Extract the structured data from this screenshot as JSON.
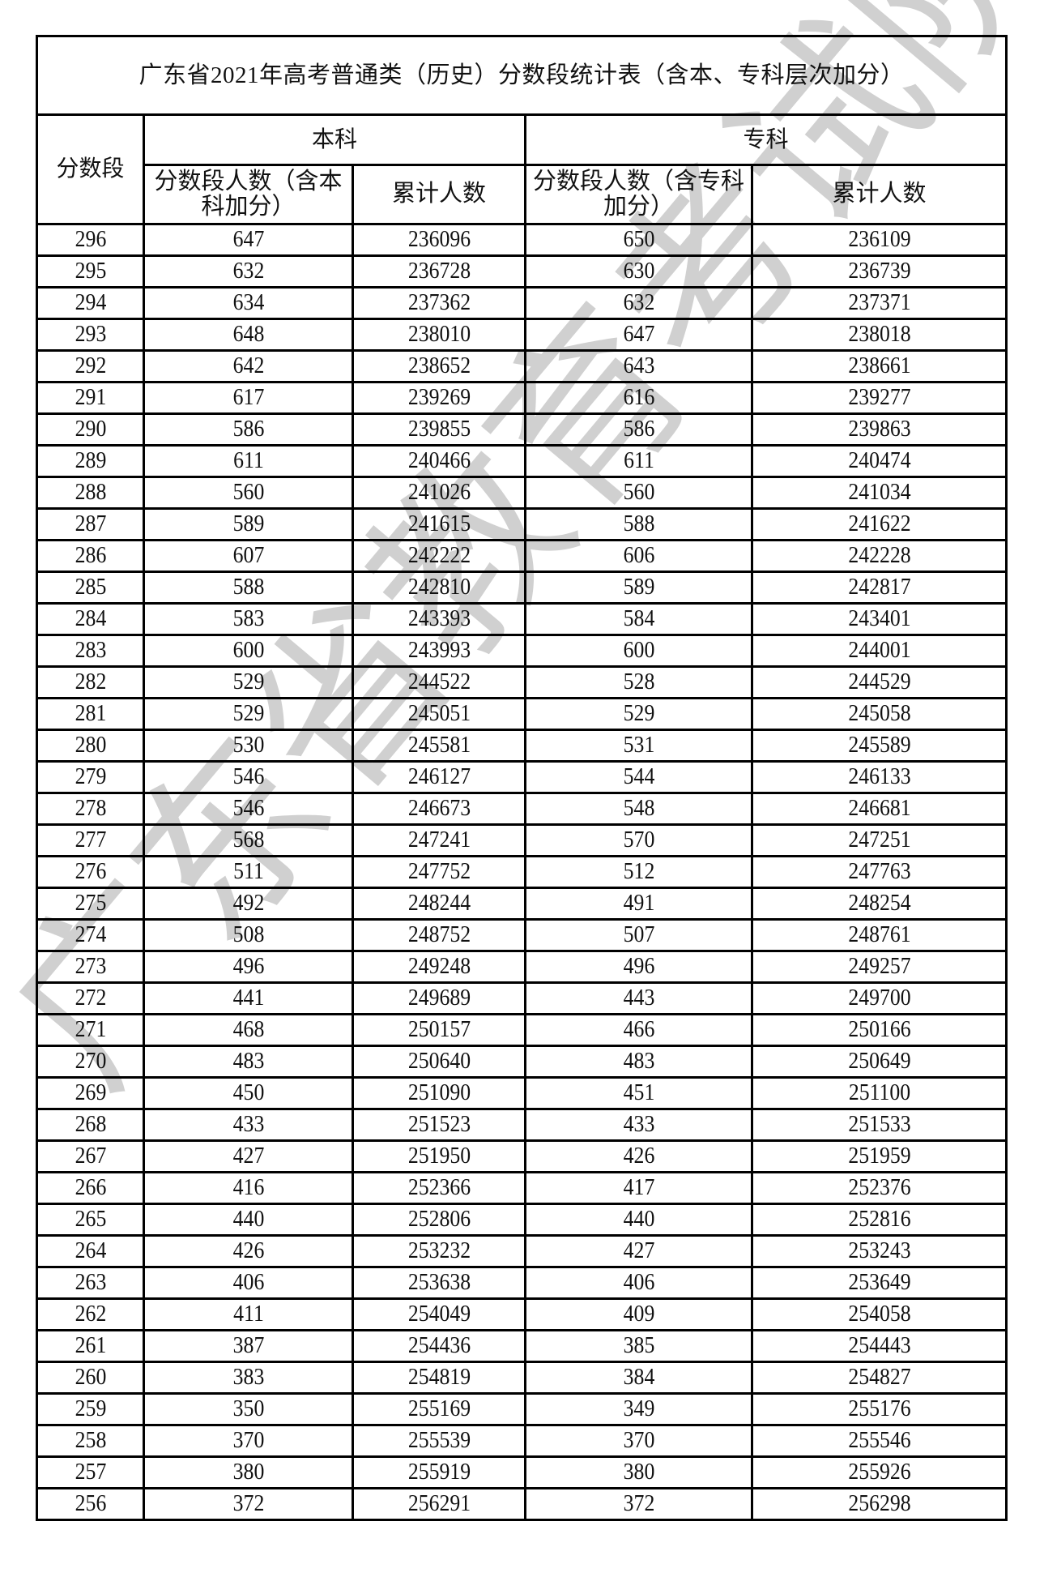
{
  "title": "广东省2021年高考普通类（历史）分数段统计表（含本、专科层次加分）",
  "headers": {
    "score": "分数段",
    "benke": "本科",
    "zhuanke": "专科",
    "benke_count": "分数段人数（含本科加分）",
    "benke_cum": "累计人数",
    "zhuanke_count": "分数段人数（含专科加分）",
    "zhuanke_cum": "累计人数"
  },
  "rows": [
    [
      "296",
      "647",
      "236096",
      "650",
      "236109"
    ],
    [
      "295",
      "632",
      "236728",
      "630",
      "236739"
    ],
    [
      "294",
      "634",
      "237362",
      "632",
      "237371"
    ],
    [
      "293",
      "648",
      "238010",
      "647",
      "238018"
    ],
    [
      "292",
      "642",
      "238652",
      "643",
      "238661"
    ],
    [
      "291",
      "617",
      "239269",
      "616",
      "239277"
    ],
    [
      "290",
      "586",
      "239855",
      "586",
      "239863"
    ],
    [
      "289",
      "611",
      "240466",
      "611",
      "240474"
    ],
    [
      "288",
      "560",
      "241026",
      "560",
      "241034"
    ],
    [
      "287",
      "589",
      "241615",
      "588",
      "241622"
    ],
    [
      "286",
      "607",
      "242222",
      "606",
      "242228"
    ],
    [
      "285",
      "588",
      "242810",
      "589",
      "242817"
    ],
    [
      "284",
      "583",
      "243393",
      "584",
      "243401"
    ],
    [
      "283",
      "600",
      "243993",
      "600",
      "244001"
    ],
    [
      "282",
      "529",
      "244522",
      "528",
      "244529"
    ],
    [
      "281",
      "529",
      "245051",
      "529",
      "245058"
    ],
    [
      "280",
      "530",
      "245581",
      "531",
      "245589"
    ],
    [
      "279",
      "546",
      "246127",
      "544",
      "246133"
    ],
    [
      "278",
      "546",
      "246673",
      "548",
      "246681"
    ],
    [
      "277",
      "568",
      "247241",
      "570",
      "247251"
    ],
    [
      "276",
      "511",
      "247752",
      "512",
      "247763"
    ],
    [
      "275",
      "492",
      "248244",
      "491",
      "248254"
    ],
    [
      "274",
      "508",
      "248752",
      "507",
      "248761"
    ],
    [
      "273",
      "496",
      "249248",
      "496",
      "249257"
    ],
    [
      "272",
      "441",
      "249689",
      "443",
      "249700"
    ],
    [
      "271",
      "468",
      "250157",
      "466",
      "250166"
    ],
    [
      "270",
      "483",
      "250640",
      "483",
      "250649"
    ],
    [
      "269",
      "450",
      "251090",
      "451",
      "251100"
    ],
    [
      "268",
      "433",
      "251523",
      "433",
      "251533"
    ],
    [
      "267",
      "427",
      "251950",
      "426",
      "251959"
    ],
    [
      "266",
      "416",
      "252366",
      "417",
      "252376"
    ],
    [
      "265",
      "440",
      "252806",
      "440",
      "252816"
    ],
    [
      "264",
      "426",
      "253232",
      "427",
      "253243"
    ],
    [
      "263",
      "406",
      "253638",
      "406",
      "253649"
    ],
    [
      "262",
      "411",
      "254049",
      "409",
      "254058"
    ],
    [
      "261",
      "387",
      "254436",
      "385",
      "254443"
    ],
    [
      "260",
      "383",
      "254819",
      "384",
      "254827"
    ],
    [
      "259",
      "350",
      "255169",
      "349",
      "255176"
    ],
    [
      "258",
      "370",
      "255539",
      "370",
      "255546"
    ],
    [
      "257",
      "380",
      "255919",
      "380",
      "255926"
    ],
    [
      "256",
      "372",
      "256291",
      "372",
      "256298"
    ]
  ],
  "watermark": "广东省教育考试院"
}
